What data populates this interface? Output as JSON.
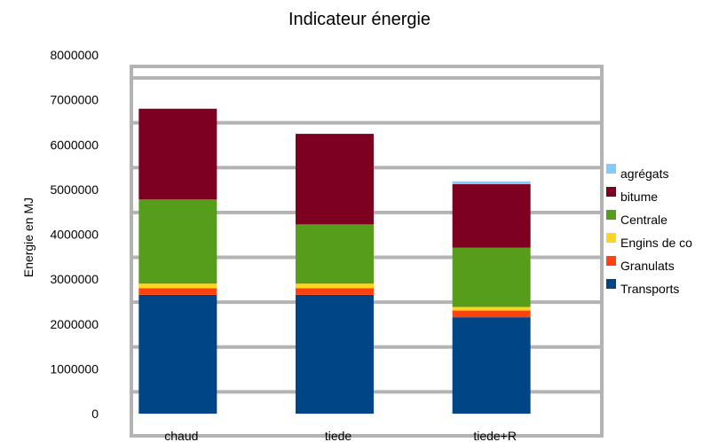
{
  "chart_data": {
    "type": "bar",
    "stacked": true,
    "title": "Indicateur énergie",
    "xlabel": "",
    "ylabel": "Energie en MJ",
    "ylim": [
      0,
      8000000
    ],
    "yticks": [
      "0",
      "1000000",
      "2000000",
      "3000000",
      "4000000",
      "5000000",
      "6000000",
      "7000000",
      "8000000"
    ],
    "grid": true,
    "legend_position": "right",
    "categories": [
      "chaud",
      "tiede",
      "tiede+R"
    ],
    "series": [
      {
        "name": "Transports",
        "color": "#004586",
        "values": [
          2650000,
          2650000,
          2150000
        ]
      },
      {
        "name": "Granulats",
        "color": "#ff420e",
        "values": [
          150000,
          150000,
          150000
        ]
      },
      {
        "name": "Engins de co",
        "color": "#ffd320",
        "values": [
          100000,
          100000,
          80000
        ]
      },
      {
        "name": "Centrale",
        "color": "#579d1c",
        "values": [
          1880000,
          1320000,
          1320000
        ]
      },
      {
        "name": "bitume",
        "color": "#7e0021",
        "values": [
          2020000,
          2020000,
          1420000
        ]
      },
      {
        "name": "agrégats",
        "color": "#83caff",
        "values": [
          0,
          0,
          60000
        ]
      }
    ]
  }
}
